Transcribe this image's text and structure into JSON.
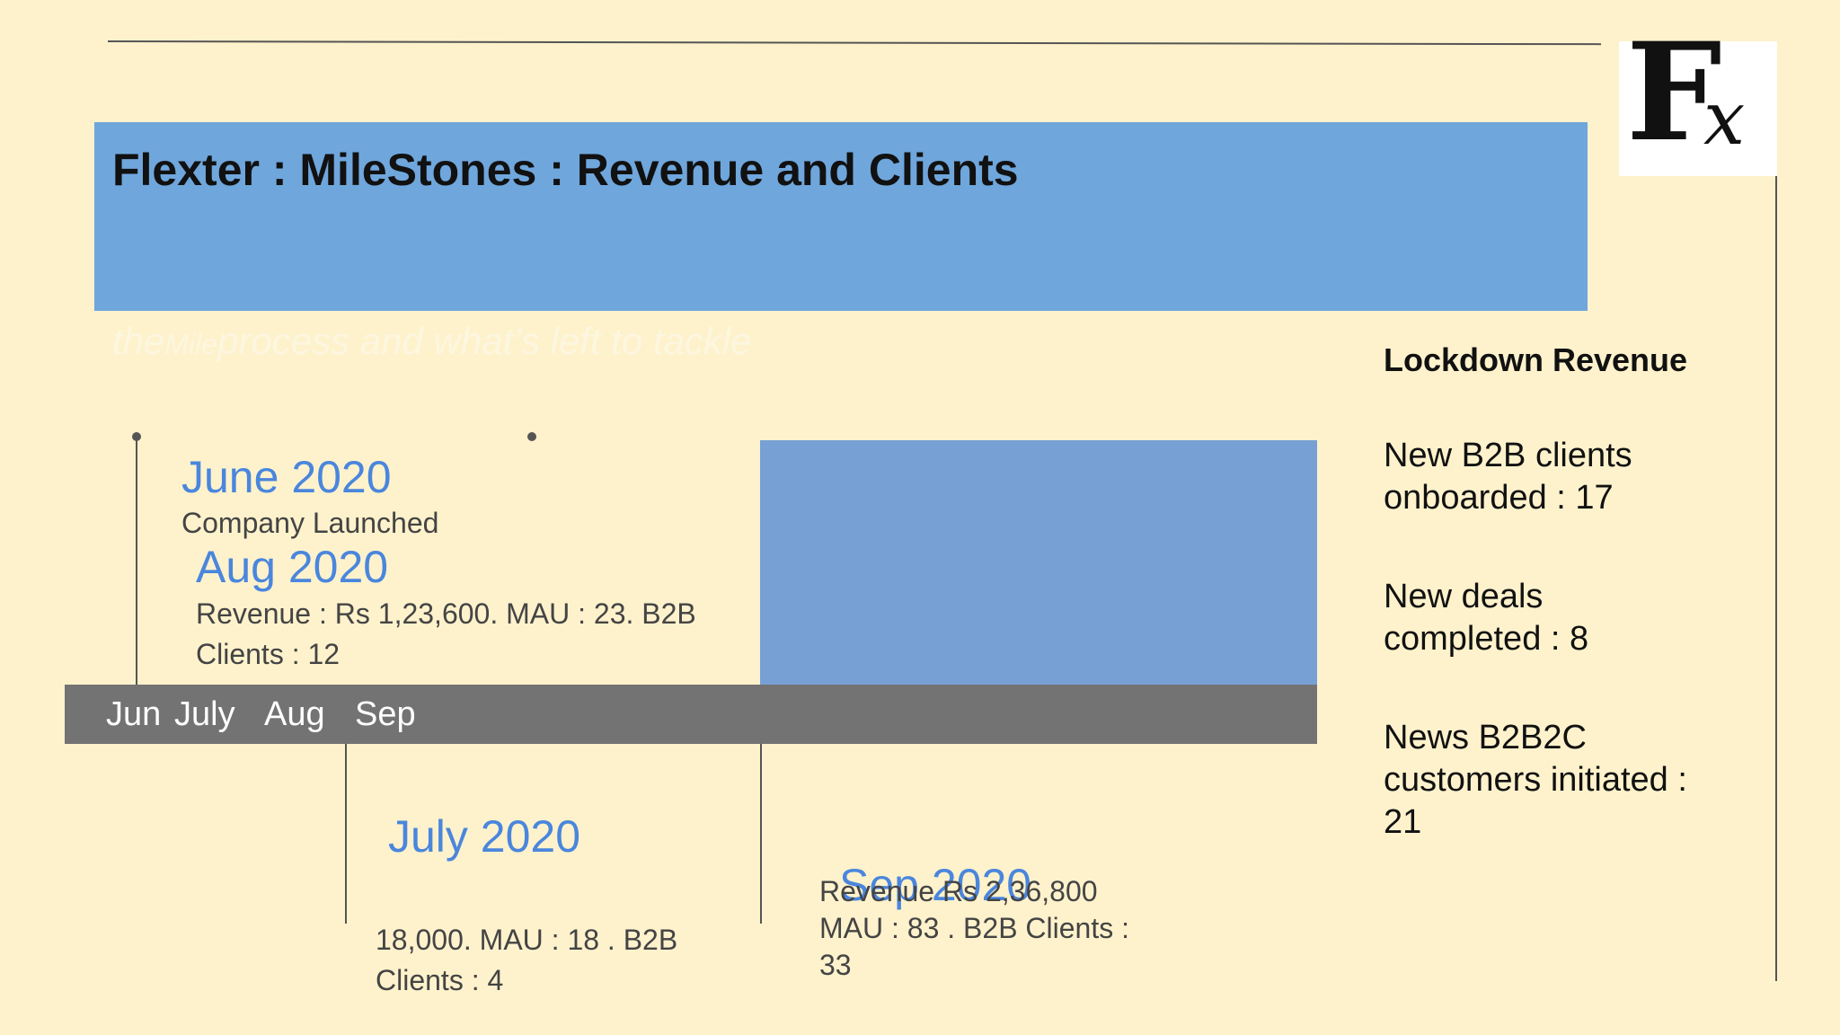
{
  "slide": {
    "title": "Flexter : MileStones : Revenue and Clients",
    "subtitle_part1": "the",
    "subtitle_part2": "Mile",
    "subtitle_part3": "process and  what’s left to tackle"
  },
  "logo": {
    "letter_main": "F",
    "letter_sub": "x"
  },
  "timeline": {
    "labels": [
      "Jun",
      "July",
      "Aug",
      "Sep"
    ]
  },
  "milestones": {
    "june": {
      "heading": "June 2020",
      "text": "Company Launched"
    },
    "aug": {
      "heading": "Aug 2020",
      "text_line1": "Revenue : Rs 1,23,600.  MAU : 23. B2B",
      "text_line2": "Clients : 12"
    },
    "july": {
      "heading": "July 2020",
      "text_line1": "18,000. MAU : 18 . B2B",
      "text_line2": "Clients : 4"
    },
    "sep": {
      "heading": "Sep 2020",
      "text_line1": "Revenue Rs 2,36,800",
      "text_line2": "MAU : 83 . B2B Clients :",
      "text_line3": "33"
    }
  },
  "sidebar": {
    "heading": "Lockdown Revenue",
    "items": [
      {
        "line1": "New B2B clients",
        "line2": "onboarded : 17"
      },
      {
        "line1": "New deals",
        "line2": "completed : 8"
      },
      {
        "line1": "News B2B2C",
        "line2": "customers initiated :",
        "line3": "21"
      }
    ]
  },
  "colors": {
    "background": "#fef2cc",
    "title_band": "#6fa6dc",
    "timeline_bar": "#747374",
    "milestone_heading": "#4a86dd"
  }
}
